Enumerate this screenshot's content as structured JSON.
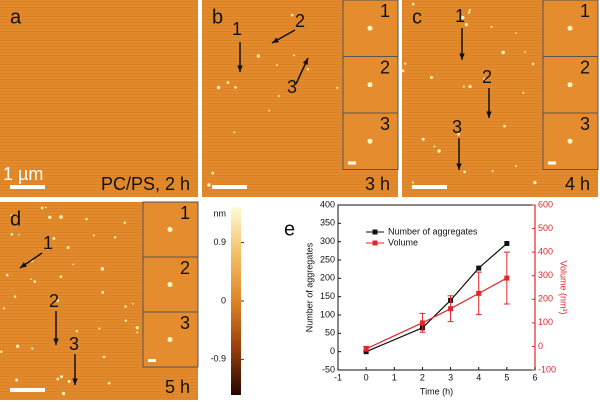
{
  "panels": [
    {
      "label": "a",
      "caption": "PC/PS, 2 h",
      "scale": "1 µm"
    },
    {
      "label": "b",
      "caption": "3 h",
      "arrows": [
        "1",
        "2",
        "3"
      ],
      "insets": [
        "1",
        "2",
        "3"
      ]
    },
    {
      "label": "c",
      "caption": "4 h",
      "arrows": [
        "1",
        "2",
        "3"
      ],
      "insets": [
        "1",
        "2",
        "3"
      ]
    },
    {
      "label": "d",
      "caption": "5 h",
      "arrows": [
        "1",
        "2",
        "3"
      ],
      "insets": [
        "1",
        "2",
        "3"
      ]
    }
  ],
  "colorbar": {
    "unit": "nm",
    "lim": [
      -1.45,
      1.45
    ],
    "ticks": [
      0.9,
      0,
      -0.9
    ]
  },
  "chart_data": {
    "type": "line",
    "label": "e",
    "xlabel": "Time (h)",
    "ylabel": "Number of aggregates",
    "y2label": "Volume (nm³)",
    "x": [
      0,
      2,
      3,
      4,
      5
    ],
    "xlim": [
      -1,
      6
    ],
    "xticks": [
      -1,
      0,
      1,
      2,
      3,
      4,
      5,
      6
    ],
    "ylim": [
      -50,
      400
    ],
    "yticks": [
      -50,
      0,
      50,
      100,
      150,
      200,
      250,
      300,
      350,
      400
    ],
    "y2lim": [
      -100,
      600
    ],
    "y2ticks": [
      -100,
      0,
      100,
      200,
      300,
      400,
      500,
      600
    ],
    "series": [
      {
        "name": "Number of aggregates",
        "color": "#111111",
        "values": [
          0,
          65,
          140,
          228,
          295
        ]
      },
      {
        "name": "Volume",
        "color": "#e0262a",
        "axis": "y2",
        "values": [
          -10,
          100,
          160,
          225,
          290
        ],
        "errors": [
          10,
          40,
          55,
          90,
          110
        ]
      }
    ]
  }
}
